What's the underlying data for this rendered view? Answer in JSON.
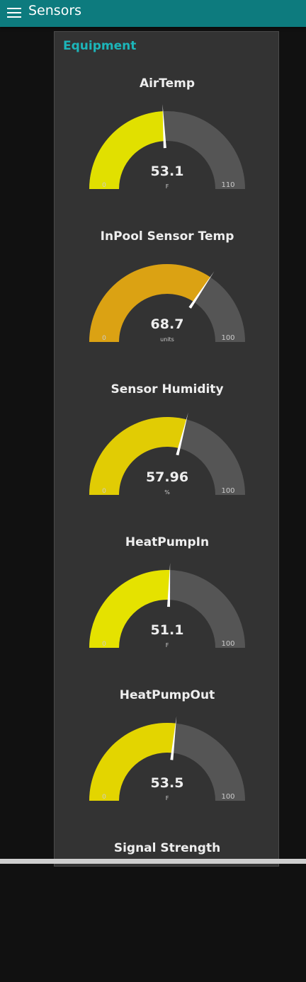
{
  "header": {
    "title": "Sensors",
    "menu_icon": "hamburger-menu-icon"
  },
  "group": {
    "title": "Equipment"
  },
  "gauges": [
    {
      "title": "AirTemp",
      "value": "53.1",
      "units": "F",
      "min": "0",
      "max": "110",
      "fraction": 0.4827,
      "color": "#e1e000"
    },
    {
      "title": "InPool Sensor Temp",
      "value": "68.7",
      "units": "units",
      "min": "0",
      "max": "100",
      "fraction": 0.687,
      "color": "#dba213"
    },
    {
      "title": "Sensor Humidity",
      "value": "57.96",
      "units": "%",
      "min": "0",
      "max": "100",
      "fraction": 0.5796,
      "color": "#e1cc04"
    },
    {
      "title": "HeatPumpIn",
      "value": "51.1",
      "units": "F",
      "min": "0",
      "max": "100",
      "fraction": 0.511,
      "color": "#e5e200"
    },
    {
      "title": "HeatPumpOut",
      "value": "53.5",
      "units": "F",
      "min": "0",
      "max": "100",
      "fraction": 0.535,
      "color": "#e3d500"
    },
    {
      "title": "Signal Strength"
    }
  ],
  "colors": {
    "header": "#0d7b7e",
    "accent": "#1cb5b9",
    "track": "#555555",
    "card": "#333333",
    "background": "#111111"
  }
}
